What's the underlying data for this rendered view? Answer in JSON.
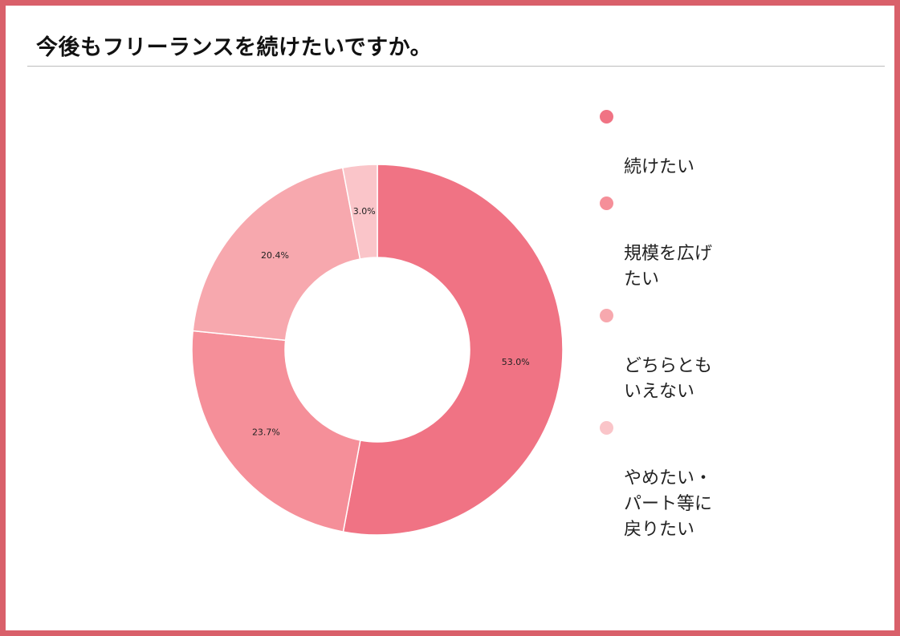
{
  "title": "今後もフリーランスを続けたいですか。",
  "colors": {
    "frame": "#d9606a",
    "slice_1": "#f07384",
    "slice_2": "#f58f99",
    "slice_3": "#f7a8ae",
    "slice_4": "#fac5c9"
  },
  "chart_data": {
    "type": "pie",
    "style": "donut",
    "title": "今後もフリーランスを続けたいですか。",
    "categories": [
      "続けたい",
      "規模を広げたい",
      "どちらともいえない",
      "やめたい・パート等に戻りたい"
    ],
    "values": [
      53.0,
      23.7,
      20.4,
      3.0
    ],
    "value_labels": [
      "53.0%",
      "23.7%",
      "20.4%",
      "3.0%"
    ],
    "legend_position": "right",
    "legend": [
      {
        "label": "続けたい",
        "display": "続けたい"
      },
      {
        "label": "規模を広げたい",
        "display": "規模を広げ\nたい"
      },
      {
        "label": "どちらともいえない",
        "display": "どちらとも\nいえない"
      },
      {
        "label": "やめたい・パート等に戻りたい",
        "display": "やめたい・\nパート等に\n戻りたい"
      }
    ]
  }
}
